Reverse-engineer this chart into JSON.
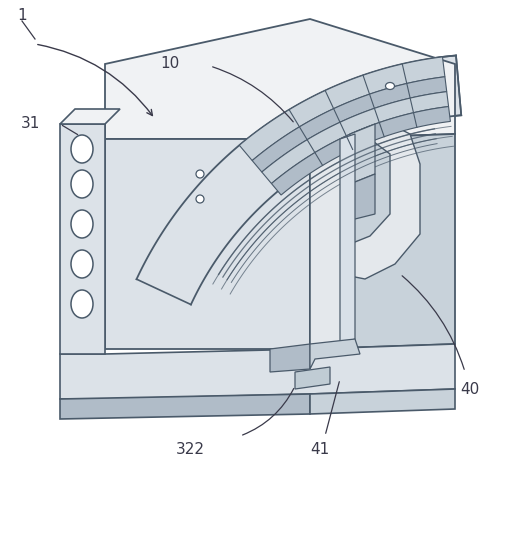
{
  "background_color": "#ffffff",
  "line_color": "#5a7fa0",
  "dark_line_color": "#3a3a4a",
  "edge_color": "#4a5a6a",
  "fill_top": "#f0f2f4",
  "fill_front": "#dce2e8",
  "fill_side": "#c8d2da",
  "fill_dark": "#b0bcc8",
  "fill_inner": "#e4e8ec",
  "label_fontsize": 11,
  "figsize": [
    5.29,
    5.54
  ],
  "dpi": 100
}
